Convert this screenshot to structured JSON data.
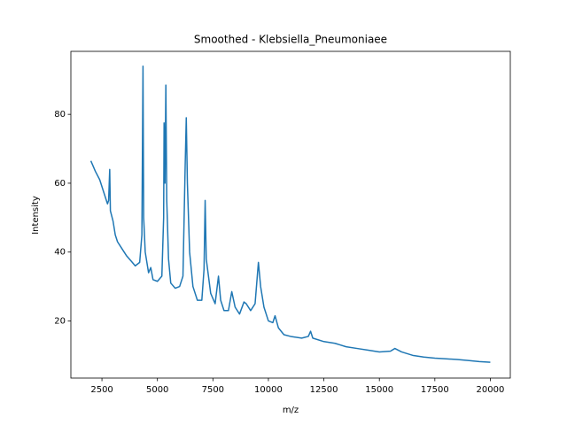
{
  "chart_data": {
    "type": "line",
    "title": "Smoothed - Klebsiella_Pneumoniaee",
    "x_label": "m/z",
    "y_label": "Intensity",
    "x": [
      2000,
      2100,
      2200,
      2400,
      2600,
      2750,
      2800,
      2850,
      2880,
      3000,
      3100,
      3200,
      3400,
      3600,
      3800,
      4000,
      4200,
      4300,
      4350,
      4380,
      4450,
      4600,
      4700,
      4800,
      5000,
      5200,
      5280,
      5300,
      5340,
      5380,
      5420,
      5500,
      5600,
      5800,
      6000,
      6150,
      6250,
      6300,
      6350,
      6450,
      6600,
      6800,
      7000,
      7100,
      7150,
      7200,
      7400,
      7600,
      7750,
      7850,
      8000,
      8200,
      8350,
      8500,
      8700,
      8900,
      9000,
      9200,
      9400,
      9500,
      9550,
      9650,
      9800,
      10000,
      10200,
      10300,
      10450,
      10700,
      11000,
      11500,
      11800,
      11900,
      12000,
      12500,
      13000,
      13500,
      14000,
      14500,
      15000,
      15500,
      15700,
      16000,
      16500,
      17000,
      17500,
      18000,
      18500,
      19000,
      19500,
      20000
    ],
    "series": [
      {
        "name": "Intensity",
        "color": "#1f77b4",
        "values": [
          66.5,
          65,
          63.5,
          61,
          57,
          54,
          55,
          64,
          52,
          49,
          45,
          43,
          41,
          39,
          37.5,
          36,
          37,
          45,
          94,
          50,
          40,
          34,
          35.5,
          32,
          31.5,
          33,
          50,
          77.5,
          60,
          88.5,
          55,
          38,
          31,
          29.5,
          30,
          33,
          65,
          79,
          60,
          40,
          30,
          26,
          26,
          35,
          55,
          38,
          28,
          25,
          33,
          26,
          23,
          23,
          28.5,
          24,
          22,
          25.5,
          25,
          23,
          25,
          33,
          37,
          30,
          24,
          20,
          19.5,
          21.5,
          18,
          16,
          15.5,
          15,
          15.5,
          17,
          15,
          14,
          13.5,
          12.5,
          12,
          11.5,
          11,
          11.2,
          12,
          11,
          10,
          9.5,
          9.2,
          9,
          8.8,
          8.5,
          8.2,
          8
        ]
      }
    ],
    "xlim": [
      1100,
      20900
    ],
    "ylim": [
      3.4,
      98.3
    ],
    "xticks": [
      2500,
      5000,
      7500,
      10000,
      12500,
      15000,
      17500,
      20000
    ],
    "yticks": [
      20,
      40,
      60,
      80
    ]
  }
}
